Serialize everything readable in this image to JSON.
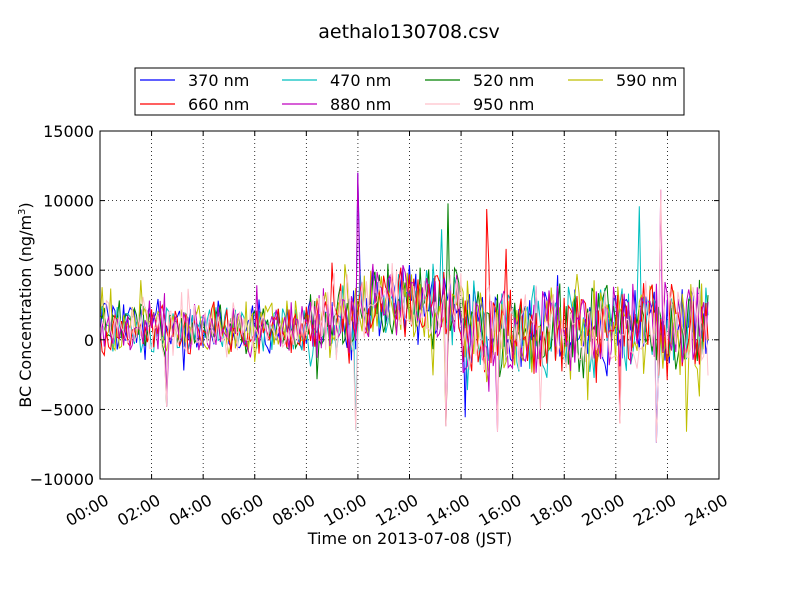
{
  "chart_data": {
    "type": "line",
    "title": "aethalo130708.csv",
    "xlabel": "Time on 2013-07-08 (JST)",
    "ylabel": "BC Concentration (ng/m",
    "ylabel_sup": "3",
    "ylabel_close": ")",
    "xlim": [
      0,
      24
    ],
    "ylim": [
      -10000,
      15000
    ],
    "xticks": [
      0,
      2,
      4,
      6,
      8,
      10,
      12,
      14,
      16,
      18,
      20,
      22,
      24
    ],
    "xtick_labels": [
      "00:00",
      "02:00",
      "04:00",
      "06:00",
      "08:00",
      "10:00",
      "12:00",
      "14:00",
      "16:00",
      "18:00",
      "20:00",
      "22:00",
      "24:00"
    ],
    "yticks": [
      -10000,
      -5000,
      0,
      5000,
      10000,
      15000
    ],
    "ytick_labels": [
      "−10000",
      "−5000",
      "0",
      "5000",
      "10000",
      "15000"
    ],
    "grid": true,
    "legend_position": "top-center",
    "legend_columns": 4,
    "x_end_hours": 23.6,
    "sample_step_hours": 0.0833,
    "series": [
      {
        "name": "370 nm",
        "color": "#0000ff"
      },
      {
        "name": "470 nm",
        "color": "#00bfbf"
      },
      {
        "name": "520 nm",
        "color": "#008000"
      },
      {
        "name": "590 nm",
        "color": "#bfbf00"
      },
      {
        "name": "660 nm",
        "color": "#ff0000"
      },
      {
        "name": "880 nm",
        "color": "#bf00bf"
      },
      {
        "name": "950 nm",
        "color": "#ffc0cb"
      }
    ],
    "segment_profile": [
      {
        "from": 0,
        "to": 8,
        "mean": 800,
        "spread": 1800
      },
      {
        "from": 8,
        "to": 10,
        "mean": 1200,
        "spread": 2600
      },
      {
        "from": 10,
        "to": 14,
        "mean": 2500,
        "spread": 2800
      },
      {
        "from": 14,
        "to": 17,
        "mean": 700,
        "spread": 3200
      },
      {
        "from": 17,
        "to": 23.6,
        "mean": 900,
        "spread": 3400
      }
    ],
    "spikes": [
      {
        "x": 9.98,
        "y": 12000
      },
      {
        "x": 9.92,
        "y": -6500
      },
      {
        "x": 13.5,
        "y": 9800
      },
      {
        "x": 13.4,
        "y": -6200
      },
      {
        "x": 15.0,
        "y": 9400
      },
      {
        "x": 15.4,
        "y": -6600
      },
      {
        "x": 21.7,
        "y": 10800
      },
      {
        "x": 21.6,
        "y": -7400
      },
      {
        "x": 20.9,
        "y": 9600
      },
      {
        "x": 2.6,
        "y": -4800
      },
      {
        "x": 22.7,
        "y": -6600
      },
      {
        "x": 20.2,
        "y": -6000
      }
    ]
  }
}
